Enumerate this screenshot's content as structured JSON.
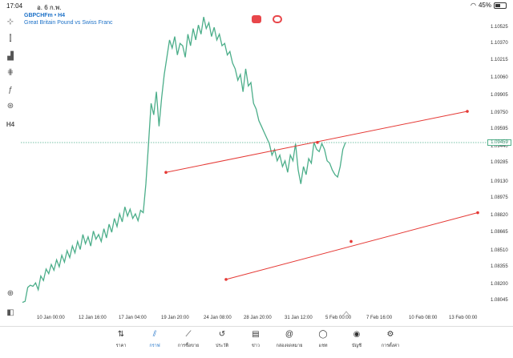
{
  "status_bar": {
    "time": "17:04",
    "date": "อ. 6 ก.พ.",
    "battery": "45%"
  },
  "symbol": {
    "name": "GBPCHFm • H4",
    "description": "Great Britain Pound vs Swiss Franc"
  },
  "left_tools": [
    {
      "name": "crosshair-icon",
      "glyph": "⊹"
    },
    {
      "name": "chart-type-icon",
      "glyph": "⫿"
    },
    {
      "name": "indicators-icon",
      "glyph": "▟"
    },
    {
      "name": "settings-sliders-icon",
      "glyph": "⋕"
    },
    {
      "name": "function-icon",
      "glyph": "ƒ"
    },
    {
      "name": "objects-icon",
      "glyph": "⊛"
    },
    {
      "name": "timeframe-label",
      "glyph": "H4"
    }
  ],
  "price_axis": [
    "1.10525",
    "1.10370",
    "1.10215",
    "1.10060",
    "1.09905",
    "1.09750",
    "1.09595",
    "1.09440",
    "1.09285",
    "1.09130",
    "1.08975",
    "1.08820",
    "1.08665",
    "1.08510",
    "1.08355",
    "1.08200",
    "1.08045"
  ],
  "current_price": "1.09459",
  "time_axis": [
    "10 Jan 00:00",
    "12 Jan 16:00",
    "17 Jan 04:00",
    "19 Jan 20:00",
    "24 Jan 08:00",
    "28 Jan 20:00",
    "31 Jan 12:00",
    "5 Feb 00:00",
    "7 Feb 16:00",
    "10 Feb 08:00",
    "13 Feb 00:00"
  ],
  "chart_data": {
    "type": "line",
    "y_range": [
      1.0797,
      1.106
    ],
    "price_series": [
      1.0807,
      1.0808,
      1.082,
      1.0822,
      1.0821,
      1.0824,
      1.0818,
      1.083,
      1.0826,
      1.0836,
      1.0832,
      1.084,
      1.0835,
      1.0844,
      1.0838,
      1.0848,
      1.0842,
      1.0852,
      1.0846,
      1.0856,
      1.085,
      1.086,
      1.0853,
      1.0866,
      1.0858,
      1.0864,
      1.0856,
      1.0869,
      1.0862,
      1.0866,
      1.086,
      1.0871,
      1.0863,
      1.0875,
      1.0868,
      1.088,
      1.0873,
      1.0884,
      1.0877,
      1.089,
      1.0882,
      1.0888,
      1.088,
      1.0884,
      1.0878,
      1.0887,
      1.0885,
      1.091,
      1.0945,
      1.098,
      1.097,
      1.099,
      1.096,
      1.0985,
      1.1005,
      1.102,
      1.1035,
      1.1028,
      1.1038,
      1.1022,
      1.1032,
      1.103,
      1.102,
      1.104,
      1.103,
      1.1045,
      1.1035,
      1.1048,
      1.104,
      1.1055,
      1.1045,
      1.105,
      1.1038,
      1.1046,
      1.1035,
      1.104,
      1.103,
      1.1032,
      1.1022,
      1.1025,
      1.1015,
      1.101,
      1.1,
      1.1005,
      1.099,
      1.101,
      1.0995,
      1.0998,
      1.098,
      1.0975,
      1.0965,
      1.096,
      1.0955,
      1.095,
      1.0945,
      1.0935,
      1.094,
      1.093,
      1.0935,
      1.0925,
      1.093,
      1.092,
      1.0935,
      1.093,
      1.0945,
      1.0922,
      1.091,
      1.0925,
      1.0918,
      1.0932,
      1.0928,
      1.0946,
      1.094,
      1.0938,
      1.0945,
      1.094,
      1.093,
      1.0928,
      1.0922,
      1.0918,
      1.0916,
      1.0925,
      1.094,
      1.0946
    ],
    "trendlines": [
      {
        "name": "upper-channel",
        "color": "#e53935",
        "from": [
          "18 Jan",
          1.092
        ],
        "to": [
          "13 Feb",
          1.0973
        ],
        "anchors": [
          [
            "18 Jan",
            1.092
          ],
          [
            "4 Feb",
            1.0946
          ],
          [
            "13 Feb",
            1.0973
          ]
        ]
      },
      {
        "name": "lower-channel",
        "color": "#e53935",
        "from": [
          "25 Jan",
          1.0827
        ],
        "to": [
          "14 Feb",
          1.0885
        ],
        "anchors": [
          [
            "25 Jan",
            1.0827
          ],
          [
            "6 Feb",
            1.086
          ],
          [
            "14 Feb",
            1.0885
          ]
        ]
      }
    ],
    "series_color": "#4cae8a",
    "current_price_line_color": "#4cae8a"
  },
  "bottom_nav": [
    {
      "id": "quotes",
      "label": "ราคา",
      "icon": "quotes-icon",
      "glyph": "⇅",
      "active": false
    },
    {
      "id": "chart",
      "label": "กราฟ",
      "icon": "chart-icon",
      "glyph": "⫽",
      "active": true
    },
    {
      "id": "trade",
      "label": "การซื้อขาย",
      "icon": "trade-icon",
      "glyph": "⟋",
      "active": false
    },
    {
      "id": "history",
      "label": "ประวัติ",
      "icon": "history-icon",
      "glyph": "↺",
      "active": false
    },
    {
      "id": "news",
      "label": "ข่าว",
      "icon": "news-icon",
      "glyph": "▤",
      "active": false
    },
    {
      "id": "mailbox",
      "label": "กล่องจดหมาย",
      "icon": "mailbox-icon",
      "glyph": "@",
      "active": false
    },
    {
      "id": "chat",
      "label": "แชท",
      "icon": "chat-icon",
      "glyph": "◯",
      "active": false
    },
    {
      "id": "account",
      "label": "บัญชี",
      "icon": "account-icon",
      "glyph": "◉",
      "active": false
    },
    {
      "id": "settings",
      "label": "การตั้งค่า",
      "icon": "settings-icon",
      "glyph": "⚙",
      "active": false
    }
  ]
}
